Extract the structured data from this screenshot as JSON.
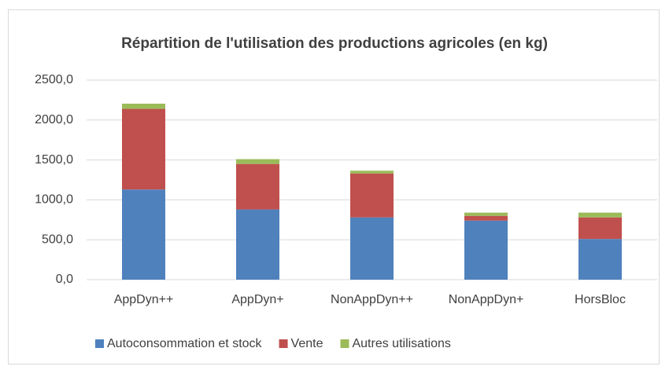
{
  "chart_data": {
    "type": "stacked_bar",
    "title": "Répartition de l'utilisation des productions agricoles (en kg)",
    "categories": [
      "AppDyn++",
      "AppDyn+",
      "NonAppDyn++",
      "NonAppDyn+",
      "HorsBloc"
    ],
    "series": [
      {
        "name": "Autoconsommation et stock",
        "color": "#4f81bd",
        "values": [
          1130,
          880,
          780,
          740,
          510
        ]
      },
      {
        "name": "Vente",
        "color": "#c0504d",
        "values": [
          1010,
          570,
          550,
          60,
          270
        ]
      },
      {
        "name": "Autres utilisations",
        "color": "#9bbb59",
        "values": [
          65,
          60,
          35,
          40,
          60
        ]
      }
    ],
    "ylim": [
      0,
      2500
    ],
    "yticks": [
      {
        "value": 0,
        "label": "0,0"
      },
      {
        "value": 500,
        "label": "500,0"
      },
      {
        "value": 1000,
        "label": "1000,0"
      },
      {
        "value": 1500,
        "label": "1500,0"
      },
      {
        "value": 2000,
        "label": "2000,0"
      },
      {
        "value": 2500,
        "label": "2500,0"
      }
    ],
    "grid": true,
    "legend": "bottom"
  }
}
